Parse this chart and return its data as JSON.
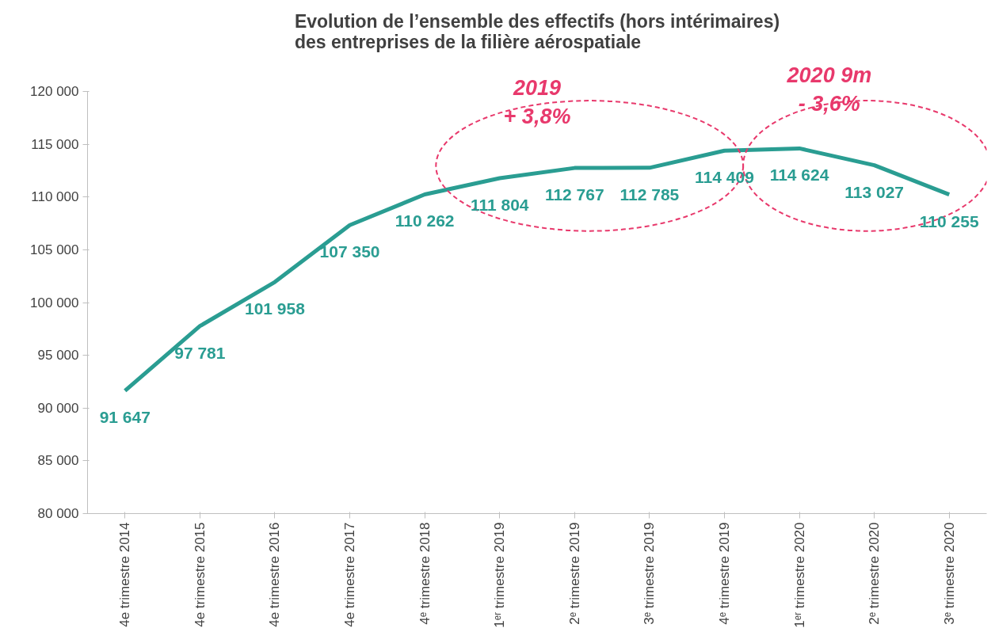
{
  "chart_data": {
    "type": "line",
    "title": "Evolution de l’ensemble des effectifs (hors intérimaires)\ndes entreprises de la filière aérospatiale",
    "categories": [
      "4e trimestre 2014",
      "4e trimestre 2015",
      "4e trimestre 2016",
      "4e trimestre 2017",
      "4ᵉ trimestre 2018",
      "1ᵉʳ trimestre 2019",
      "2ᵉ trimestre 2019",
      "3ᵉ trimestre 2019",
      "4ᵉ trimestre 2019",
      "1ᵉʳ trimestre 2020",
      "2ᵉ trimestre 2020",
      "3ᵉ trimestre 2020"
    ],
    "values": [
      91647,
      97781,
      101958,
      107350,
      110262,
      111804,
      112767,
      112785,
      114409,
      114624,
      113027,
      110255
    ],
    "value_labels": [
      "91 647",
      "97 781",
      "101 958",
      "107 350",
      "110 262",
      "111 804",
      "112 767",
      "112 785",
      "114 409",
      "114 624",
      "113 027",
      "110 255"
    ],
    "color": "#2a9d92",
    "ylim": [
      80000,
      120000
    ],
    "yticks": [
      {
        "value": 80000,
        "label": "80 000"
      },
      {
        "value": 85000,
        "label": "85 000"
      },
      {
        "value": 90000,
        "label": "90 000"
      },
      {
        "value": 95000,
        "label": "95 000"
      },
      {
        "value": 100000,
        "label": "100 000"
      },
      {
        "value": 105000,
        "label": "105 000"
      },
      {
        "value": 110000,
        "label": "110 000"
      },
      {
        "value": 115000,
        "label": "115 000"
      },
      {
        "value": 120000,
        "label": "120 000"
      }
    ],
    "annotations": [
      "2019\n+ 3,8%",
      "2020 9m\n- 3,6%"
    ],
    "grid": false,
    "marker": "none",
    "line_style": "solid"
  }
}
